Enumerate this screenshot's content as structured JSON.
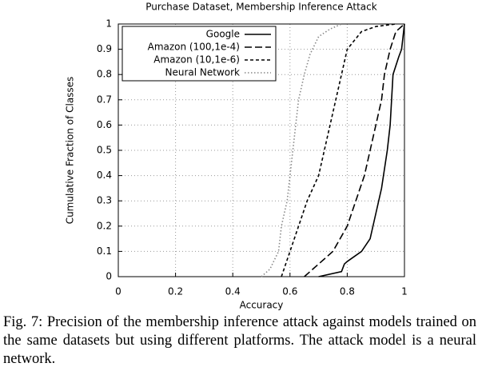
{
  "chart_data": {
    "type": "line",
    "title": "Purchase Dataset, Membership Inference Attack",
    "xlabel": "Accuracy",
    "ylabel": "Cumulative Fraction of Classes",
    "xlim": [
      0,
      1
    ],
    "ylim": [
      0,
      1
    ],
    "xticks": [
      0,
      0.2,
      0.4,
      0.6,
      0.8,
      1
    ],
    "yticks": [
      0,
      0.1,
      0.2,
      0.3,
      0.4,
      0.5,
      0.6,
      0.7,
      0.8,
      0.9,
      1
    ],
    "grid": true,
    "legend": "top-left",
    "series": [
      {
        "name": "Google",
        "color": "#000000",
        "style": "solid",
        "x": [
          0.7,
          0.78,
          0.79,
          0.8,
          0.85,
          0.88,
          0.9,
          0.92,
          0.94,
          0.95,
          0.96,
          0.98,
          0.99,
          1
        ],
        "values": [
          0,
          0.02,
          0.05,
          0.06,
          0.1,
          0.15,
          0.25,
          0.35,
          0.5,
          0.6,
          0.8,
          0.87,
          0.9,
          1
        ]
      },
      {
        "name": "Amazon (100,1e-4)",
        "color": "#000000",
        "style": "long-dash",
        "x": [
          0.65,
          0.7,
          0.75,
          0.8,
          0.83,
          0.86,
          0.88,
          0.9,
          0.92,
          0.93,
          0.95,
          0.97,
          0.99,
          1
        ],
        "values": [
          0,
          0.05,
          0.1,
          0.2,
          0.3,
          0.4,
          0.5,
          0.6,
          0.7,
          0.8,
          0.9,
          0.97,
          0.99,
          1
        ]
      },
      {
        "name": "Amazon (10,1e-6)",
        "color": "#000000",
        "style": "short-dash",
        "x": [
          0.57,
          0.6,
          0.63,
          0.66,
          0.7,
          0.72,
          0.74,
          0.76,
          0.78,
          0.8,
          0.85,
          0.9,
          0.97
        ],
        "values": [
          0,
          0.1,
          0.2,
          0.3,
          0.4,
          0.5,
          0.6,
          0.7,
          0.8,
          0.9,
          0.97,
          0.99,
          1
        ]
      },
      {
        "name": "Neural Network",
        "color": "#888888",
        "style": "dotted",
        "x": [
          0.5,
          0.53,
          0.56,
          0.57,
          0.59,
          0.6,
          0.61,
          0.62,
          0.63,
          0.65,
          0.67,
          0.7,
          0.74,
          0.78
        ],
        "values": [
          0,
          0.03,
          0.1,
          0.2,
          0.3,
          0.4,
          0.5,
          0.6,
          0.7,
          0.8,
          0.88,
          0.95,
          0.98,
          1
        ]
      }
    ]
  },
  "caption": "Fig. 7: Precision of the membership inference attack against models trained on the same datasets but using different platforms. The attack model is a neural network."
}
